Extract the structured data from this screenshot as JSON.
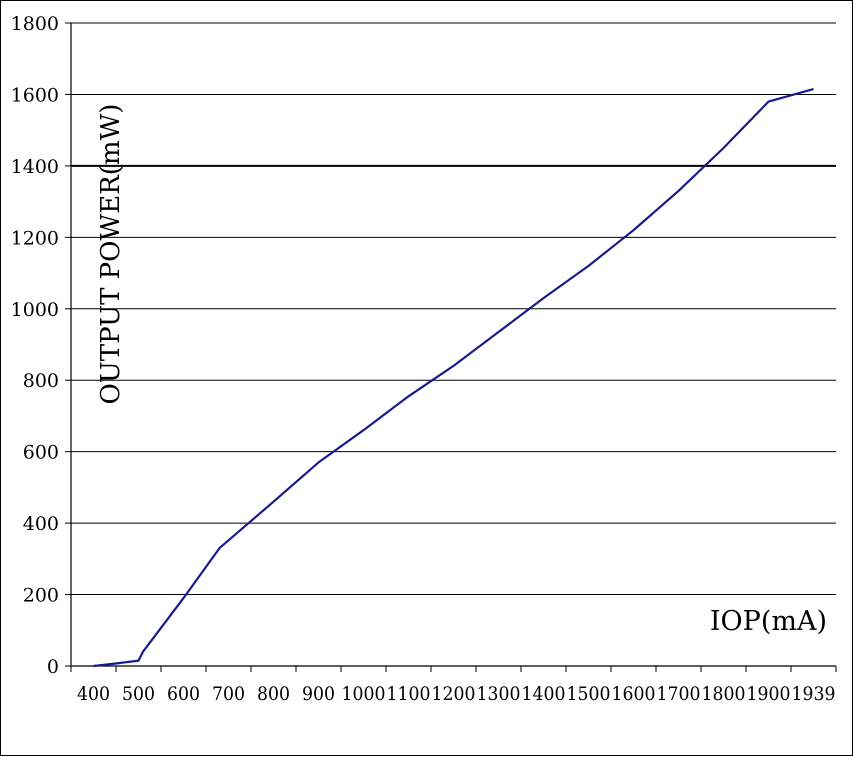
{
  "chart_data": {
    "type": "line",
    "xlabel": "IOP(mA)",
    "ylabel": "OUTPUT POWER(mW)",
    "ylim": [
      0,
      1800
    ],
    "grid": "horizontal",
    "line_color": "#1a1a8c",
    "x_ticks": [
      "400",
      "500",
      "600",
      "700",
      "800",
      "900",
      "1000",
      "1100",
      "1200",
      "1300",
      "1400",
      "1500",
      "1600",
      "1700",
      "1800",
      "1900",
      "1939"
    ],
    "y_ticks": [
      "0",
      "200",
      "400",
      "600",
      "800",
      "1000",
      "1200",
      "1400",
      "1600",
      "1800"
    ],
    "series": [
      {
        "x": [
          400,
          450,
          500,
          510,
          600,
          680,
          800,
          900,
          1000,
          1100,
          1200,
          1300,
          1400,
          1500,
          1600,
          1700,
          1800,
          1900,
          1939
        ],
        "y": [
          0,
          7,
          15,
          40,
          190,
          330,
          460,
          570,
          660,
          755,
          840,
          935,
          1030,
          1120,
          1220,
          1330,
          1450,
          1580,
          1615
        ]
      }
    ]
  }
}
